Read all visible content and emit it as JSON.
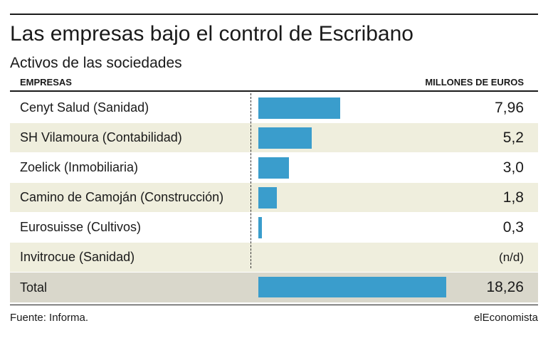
{
  "title": "Las empresas bajo el control de Escribano",
  "subtitle": "Activos de las sociedades",
  "columns": {
    "left": "EMPRESAS",
    "right": "MILLONES DE EUROS"
  },
  "chart_data": {
    "type": "bar",
    "orientation": "horizontal",
    "categories": [
      "Cenyt Salud (Sanidad)",
      "SH Vilamoura (Contabilidad)",
      "Zoelick (Inmobiliaria)",
      "Camino de Camoján (Construcción)",
      "Eurosuisse (Cultivos)",
      "Invitrocue (Sanidad)",
      "Total"
    ],
    "values": [
      7.96,
      5.2,
      3.0,
      1.8,
      0.3,
      null,
      18.26
    ],
    "labels": [
      "7,96",
      "5,2",
      "3,0",
      "1,8",
      "0,3",
      "(n/d)",
      "18,26"
    ],
    "bar_color": "#3a9dcc",
    "xlim": [
      0,
      18.26
    ],
    "xlabel": "MILLONES DE EUROS",
    "ylabel": "EMPRESAS",
    "grid": false
  },
  "footer": {
    "source": "Fuente: Informa.",
    "brand": "elEconomista"
  },
  "colors": {
    "row_alt": "#efeedd",
    "row_total": "#d9d7cb"
  }
}
